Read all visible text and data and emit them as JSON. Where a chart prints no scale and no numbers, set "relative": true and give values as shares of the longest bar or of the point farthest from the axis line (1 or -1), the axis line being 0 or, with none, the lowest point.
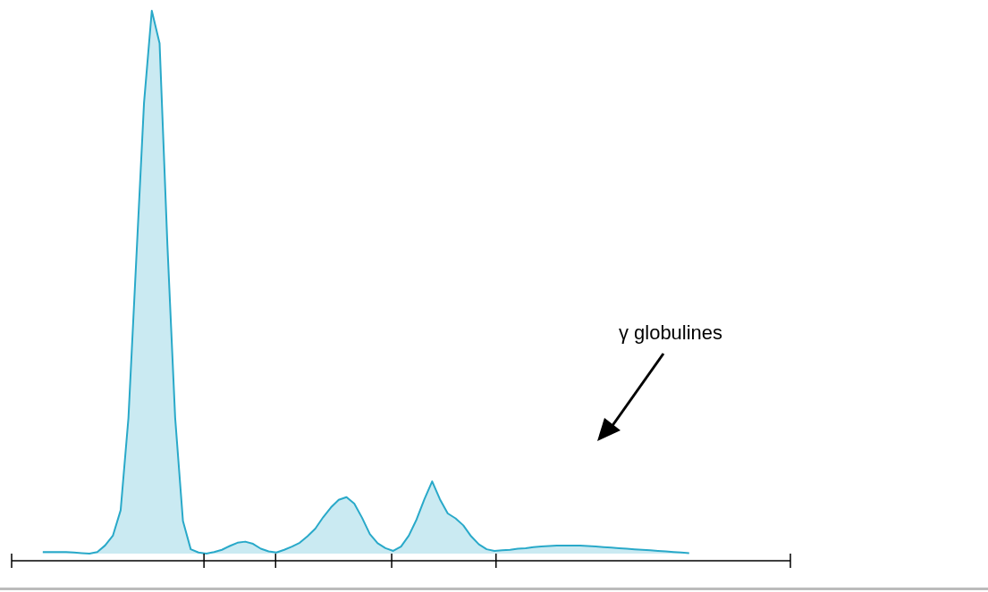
{
  "chart_data": {
    "type": "area",
    "relative": true,
    "color": "#29a9c9",
    "categories": [
      null,
      null,
      null,
      null,
      null,
      null,
      null,
      null,
      null,
      null,
      null,
      null,
      null,
      null,
      null,
      null,
      null,
      null,
      null,
      null,
      null,
      null,
      null,
      null,
      null,
      null,
      null,
      null,
      null,
      null,
      null,
      null,
      null,
      null,
      null,
      null,
      null,
      null,
      null,
      null,
      null,
      null,
      null,
      null,
      null,
      null,
      null,
      null,
      null,
      null,
      null,
      null,
      null,
      null,
      null,
      null,
      null,
      null,
      null,
      null,
      null,
      null,
      null,
      null,
      null,
      null,
      null,
      null,
      null,
      null,
      null,
      null,
      null,
      null,
      null,
      null,
      null,
      null,
      null,
      null,
      null,
      null,
      null,
      null,
      null,
      null,
      null,
      null,
      null,
      null,
      null,
      null,
      null,
      null,
      null,
      null,
      null,
      null,
      null,
      null,
      null
    ],
    "values": [
      null,
      null,
      null,
      null,
      0.003,
      0.003,
      0.003,
      0.003,
      0.002,
      0.001,
      0,
      0.003,
      0.015,
      0.033,
      0.08,
      0.25,
      0.54,
      0.83,
      1,
      0.94,
      0.57,
      0.25,
      0.06,
      0.008,
      0.002,
      0,
      0.003,
      0.007,
      0.014,
      0.02,
      0.022,
      0.018,
      0.009,
      0.004,
      0.002,
      0.007,
      0.013,
      0.02,
      0.032,
      0.046,
      0.067,
      0.085,
      0.099,
      0.104,
      0.092,
      0.066,
      0.036,
      0.019,
      0.01,
      0.005,
      0.013,
      0.033,
      0.063,
      0.1,
      0.133,
      0.1,
      0.074,
      0.065,
      0.052,
      0.032,
      0.017,
      0.008,
      0.005,
      0.006,
      0.007,
      0.009,
      0.01,
      0.012,
      0.013,
      0.014,
      0.015,
      0.015,
      0.015,
      0.015,
      0.014,
      0.013,
      0.012,
      0.011,
      0.01,
      0.009,
      0.008,
      0.007,
      0.006,
      0.005,
      0.004,
      0.003,
      0.002,
      0.001,
      null,
      null,
      null,
      null,
      null,
      null,
      null,
      null,
      null,
      null,
      null,
      null,
      null
    ],
    "annotations": [
      "γ globulines"
    ]
  }
}
